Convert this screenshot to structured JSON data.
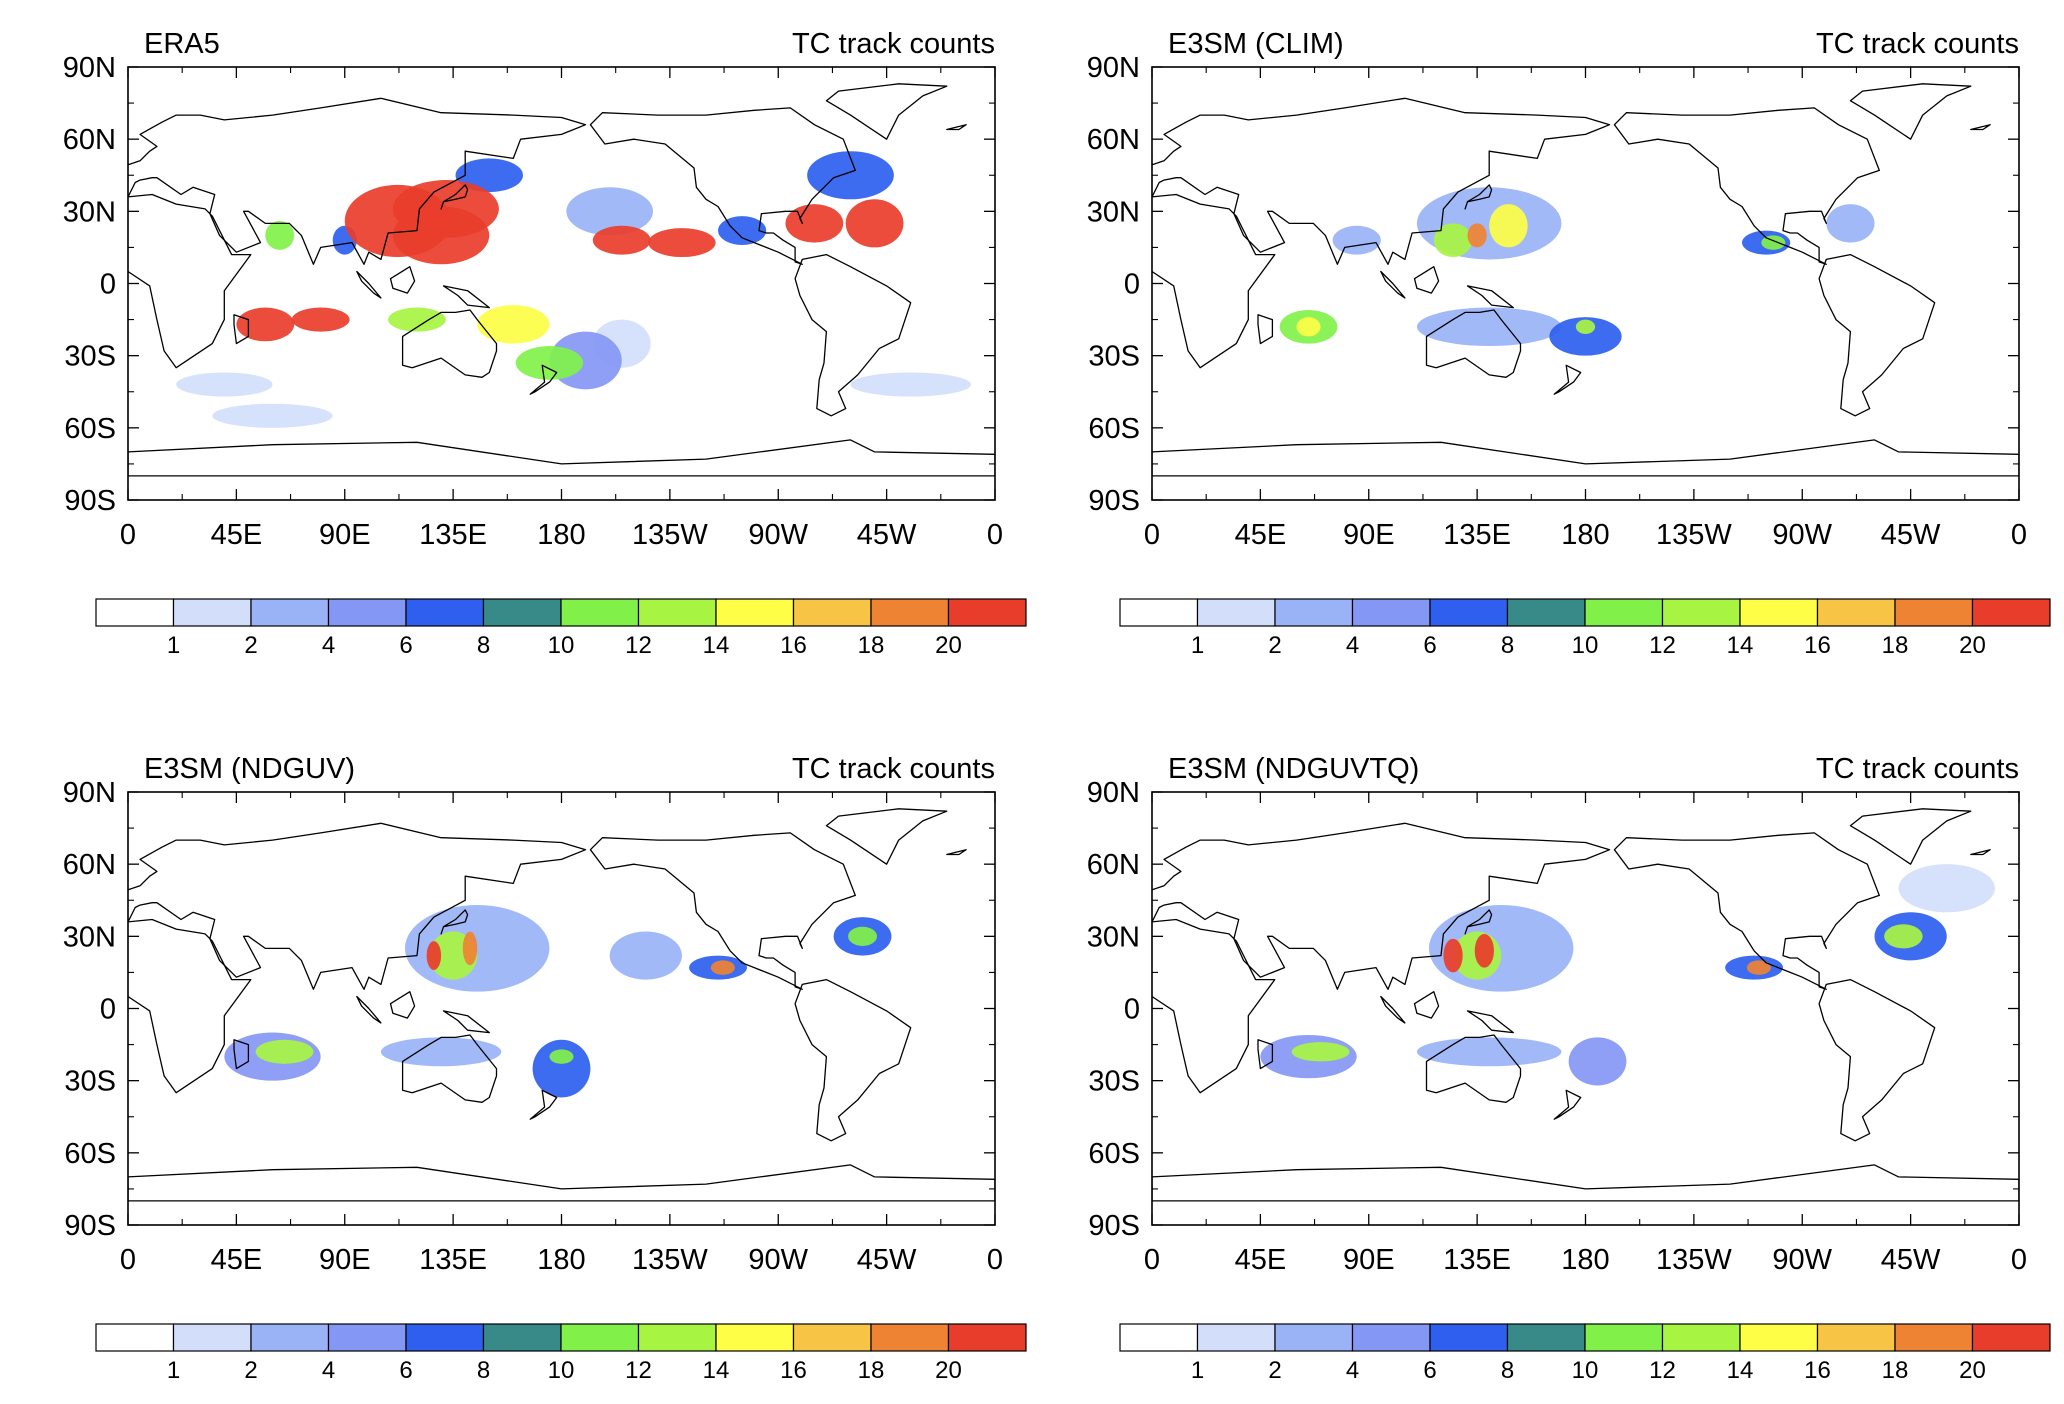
{
  "panels": [
    {
      "title": "ERA5",
      "subtitle": "TC track counts",
      "cells": [
        {
          "lon": 112,
          "lat": 26,
          "rx": 22,
          "ry": 15,
          "v": 22
        },
        {
          "lon": 130,
          "lat": 20,
          "rx": 20,
          "ry": 12,
          "v": 22
        },
        {
          "lon": 132,
          "lat": 31,
          "rx": 22,
          "ry": 12,
          "v": 22
        },
        {
          "lon": 205,
          "lat": 18,
          "rx": 12,
          "ry": 6,
          "v": 22
        },
        {
          "lon": 230,
          "lat": 17,
          "rx": 14,
          "ry": 6,
          "v": 22
        },
        {
          "lon": 285,
          "lat": 25,
          "rx": 12,
          "ry": 8,
          "v": 21
        },
        {
          "lon": 310,
          "lat": 25,
          "rx": 12,
          "ry": 10,
          "v": 21
        },
        {
          "lon": 57,
          "lat": -17,
          "rx": 12,
          "ry": 7,
          "v": 22
        },
        {
          "lon": 80,
          "lat": -15,
          "rx": 12,
          "ry": 5,
          "v": 22
        },
        {
          "lon": 63,
          "lat": 20,
          "rx": 6,
          "ry": 6,
          "v": 11
        },
        {
          "lon": 90,
          "lat": 18,
          "rx": 5,
          "ry": 6,
          "v": 7
        },
        {
          "lon": 120,
          "lat": -15,
          "rx": 12,
          "ry": 5,
          "v": 12
        },
        {
          "lon": 160,
          "lat": -17,
          "rx": 15,
          "ry": 8,
          "v": 14
        },
        {
          "lon": 175,
          "lat": -33,
          "rx": 14,
          "ry": 7,
          "v": 11
        },
        {
          "lon": 150,
          "lat": 45,
          "rx": 14,
          "ry": 7,
          "v": 7
        },
        {
          "lon": 200,
          "lat": 30,
          "rx": 18,
          "ry": 10,
          "v": 3
        },
        {
          "lon": 255,
          "lat": 22,
          "rx": 10,
          "ry": 6,
          "v": 6
        },
        {
          "lon": 300,
          "lat": 45,
          "rx": 18,
          "ry": 10,
          "v": 6
        },
        {
          "lon": 190,
          "lat": -32,
          "rx": 15,
          "ry": 12,
          "v": 4
        },
        {
          "lon": 205,
          "lat": -25,
          "rx": 12,
          "ry": 10,
          "v": 1
        },
        {
          "lon": 325,
          "lat": -42,
          "rx": 25,
          "ry": 5,
          "v": 1
        },
        {
          "lon": 40,
          "lat": -42,
          "rx": 20,
          "ry": 5,
          "v": 1
        },
        {
          "lon": 60,
          "lat": -55,
          "rx": 25,
          "ry": 5,
          "v": 1
        }
      ]
    },
    {
      "title": "E3SM (CLIM)",
      "subtitle": "TC track counts",
      "cells": [
        {
          "lon": 140,
          "lat": 25,
          "rx": 30,
          "ry": 15,
          "v": 3
        },
        {
          "lon": 125,
          "lat": 18,
          "rx": 8,
          "ry": 7,
          "v": 12
        },
        {
          "lon": 148,
          "lat": 24,
          "rx": 8,
          "ry": 9,
          "v": 14
        },
        {
          "lon": 135,
          "lat": 20,
          "rx": 4,
          "ry": 5,
          "v": 19
        },
        {
          "lon": 65,
          "lat": -18,
          "rx": 12,
          "ry": 7,
          "v": 10
        },
        {
          "lon": 65,
          "lat": -18,
          "rx": 5,
          "ry": 4,
          "v": 14
        },
        {
          "lon": 85,
          "lat": 18,
          "rx": 10,
          "ry": 6,
          "v": 2
        },
        {
          "lon": 140,
          "lat": -18,
          "rx": 30,
          "ry": 8,
          "v": 3
        },
        {
          "lon": 180,
          "lat": -22,
          "rx": 15,
          "ry": 8,
          "v": 7
        },
        {
          "lon": 180,
          "lat": -18,
          "rx": 4,
          "ry": 3,
          "v": 12
        },
        {
          "lon": 255,
          "lat": 17,
          "rx": 10,
          "ry": 5,
          "v": 7
        },
        {
          "lon": 258,
          "lat": 17,
          "rx": 5,
          "ry": 3,
          "v": 11
        },
        {
          "lon": 290,
          "lat": 25,
          "rx": 10,
          "ry": 8,
          "v": 2
        }
      ]
    },
    {
      "title": "E3SM (NDGUV)",
      "subtitle": "TC track counts",
      "cells": [
        {
          "lon": 145,
          "lat": 25,
          "rx": 30,
          "ry": 18,
          "v": 3
        },
        {
          "lon": 135,
          "lat": 22,
          "rx": 10,
          "ry": 10,
          "v": 12
        },
        {
          "lon": 127,
          "lat": 22,
          "rx": 3,
          "ry": 6,
          "v": 20
        },
        {
          "lon": 142,
          "lat": 25,
          "rx": 3,
          "ry": 7,
          "v": 19
        },
        {
          "lon": 60,
          "lat": -20,
          "rx": 20,
          "ry": 10,
          "v": 5
        },
        {
          "lon": 65,
          "lat": -18,
          "rx": 12,
          "ry": 5,
          "v": 12
        },
        {
          "lon": 130,
          "lat": -18,
          "rx": 25,
          "ry": 6,
          "v": 2
        },
        {
          "lon": 180,
          "lat": -25,
          "rx": 12,
          "ry": 12,
          "v": 6
        },
        {
          "lon": 180,
          "lat": -20,
          "rx": 5,
          "ry": 3,
          "v": 11
        },
        {
          "lon": 245,
          "lat": 17,
          "rx": 12,
          "ry": 5,
          "v": 7
        },
        {
          "lon": 247,
          "lat": 17,
          "rx": 5,
          "ry": 3,
          "v": 19
        },
        {
          "lon": 215,
          "lat": 22,
          "rx": 15,
          "ry": 10,
          "v": 2
        },
        {
          "lon": 305,
          "lat": 30,
          "rx": 12,
          "ry": 8,
          "v": 6
        },
        {
          "lon": 305,
          "lat": 30,
          "rx": 6,
          "ry": 4,
          "v": 11
        }
      ]
    },
    {
      "title": "E3SM (NDGUVTQ)",
      "subtitle": "TC track counts",
      "cells": [
        {
          "lon": 145,
          "lat": 25,
          "rx": 30,
          "ry": 18,
          "v": 3
        },
        {
          "lon": 135,
          "lat": 22,
          "rx": 10,
          "ry": 10,
          "v": 12
        },
        {
          "lon": 125,
          "lat": 22,
          "rx": 4,
          "ry": 7,
          "v": 21
        },
        {
          "lon": 138,
          "lat": 24,
          "rx": 4,
          "ry": 7,
          "v": 21
        },
        {
          "lon": 65,
          "lat": -20,
          "rx": 20,
          "ry": 9,
          "v": 5
        },
        {
          "lon": 70,
          "lat": -18,
          "rx": 12,
          "ry": 4,
          "v": 12
        },
        {
          "lon": 140,
          "lat": -18,
          "rx": 30,
          "ry": 6,
          "v": 2
        },
        {
          "lon": 185,
          "lat": -22,
          "rx": 12,
          "ry": 10,
          "v": 4
        },
        {
          "lon": 250,
          "lat": 17,
          "rx": 12,
          "ry": 5,
          "v": 7
        },
        {
          "lon": 252,
          "lat": 17,
          "rx": 5,
          "ry": 3,
          "v": 19
        },
        {
          "lon": 315,
          "lat": 30,
          "rx": 15,
          "ry": 10,
          "v": 6
        },
        {
          "lon": 312,
          "lat": 30,
          "rx": 8,
          "ry": 5,
          "v": 12
        },
        {
          "lon": 330,
          "lat": 50,
          "rx": 20,
          "ry": 10,
          "v": 1
        }
      ]
    }
  ],
  "lon_ticks": [
    "0",
    "45E",
    "90E",
    "135E",
    "180",
    "135W",
    "90W",
    "45W",
    "0"
  ],
  "lat_ticks": [
    "90N",
    "60N",
    "30N",
    "0",
    "30S",
    "60S",
    "90S"
  ],
  "colorbar": {
    "labels": [
      "1",
      "2",
      "4",
      "6",
      "8",
      "10",
      "12",
      "14",
      "16",
      "18",
      "20"
    ],
    "colors": [
      "#ffffff",
      "#d3defb",
      "#9ab3f7",
      "#8597f4",
      "#2e5fef",
      "#378a87",
      "#81f14a",
      "#a8f442",
      "#fdfe45",
      "#f8c445",
      "#ee8334",
      "#e93d2b"
    ]
  }
}
